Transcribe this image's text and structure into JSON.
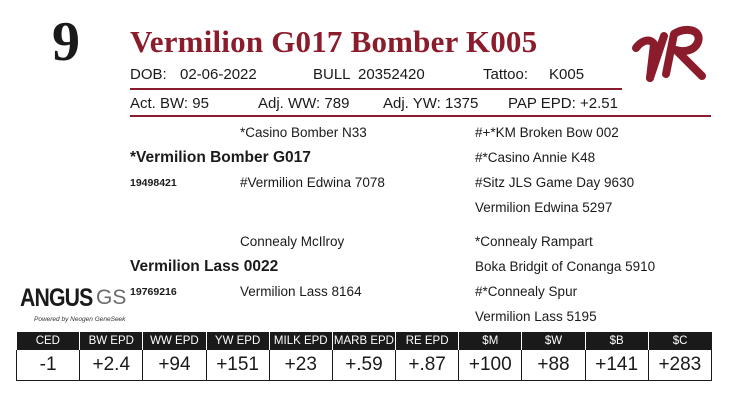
{
  "lot_number": "9",
  "animal_name": "Vermilion G017 Bomber K005",
  "logo_text": "VR",
  "details": {
    "dob_label": "DOB:",
    "dob_value": "02-06-2022",
    "sex": "BULL",
    "registration": "20352420",
    "tattoo_label": "Tattoo:",
    "tattoo_value": "K005"
  },
  "performance": {
    "act_bw": "Act. BW: 95",
    "adj_ww": "Adj. WW: 789",
    "adj_yw": "Adj. YW: 1375",
    "pap_epd": "PAP EPD: +2.51"
  },
  "pedigree": {
    "sire_sire": "*Casino Bomber N33",
    "sire": "*Vermilion Bomber G017",
    "sire_reg": "19498421",
    "sire_dam": "#Vermilion Edwina 7078",
    "sss": "#+*KM Broken Bow 002",
    "ssd": "#*Casino Annie K48",
    "sds": "#Sitz JLS Game Day 9630",
    "sdd": "Vermilion Edwina 5297",
    "dam_sire": "Connealy McIlroy",
    "dam": "Vermilion Lass 0022",
    "dam_reg": "19769216",
    "dam_dam": "Vermilion Lass 8164",
    "dss": "*Connealy Rampart",
    "dsd": "Boka Bridgit of Conanga 5910",
    "dds": "#*Connealy Spur",
    "ddd": "Vermilion Lass 5195"
  },
  "angus_logo": {
    "main": "ANGUS",
    "suffix": "GS",
    "tagline": "Powered by Neogen GeneSeek"
  },
  "epd": {
    "headers": [
      "CED",
      "BW EPD",
      "WW EPD",
      "YW EPD",
      "MILK EPD",
      "MARB EPD",
      "RE EPD",
      "$M",
      "$W",
      "$B",
      "$C"
    ],
    "values": [
      "-1",
      "+2.4",
      "+94",
      "+151",
      "+23",
      "+.59",
      "+.87",
      "+100",
      "+88",
      "+141",
      "+283"
    ]
  },
  "colors": {
    "brand_red": "#8b1c2b",
    "table_header": "#1a1a1a"
  }
}
